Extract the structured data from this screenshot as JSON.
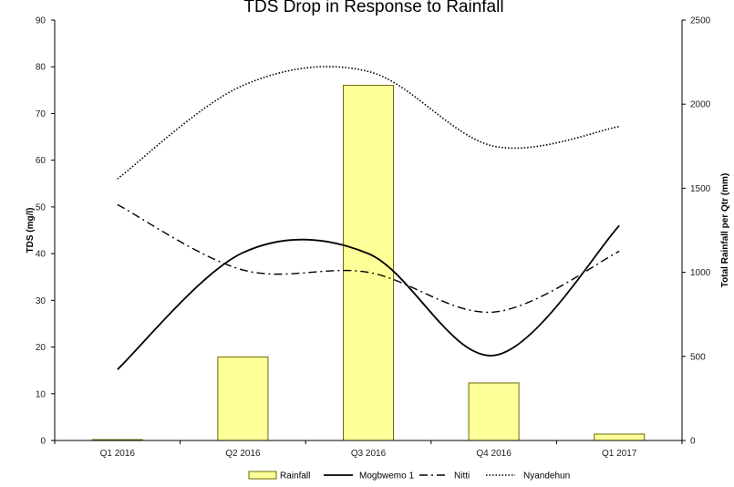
{
  "chart_data": {
    "type": "bar+line",
    "title": "TDS Drop in Response to Rainfall",
    "categories": [
      "Q1 2016",
      "Q2 2016",
      "Q3 2016",
      "Q4 2016",
      "Q1 2017"
    ],
    "ylabel": "TDS (mg/l)",
    "y2label": "Total Rainfall per Qtr (mm)",
    "ylim": [
      0,
      90
    ],
    "yticks": [
      "0",
      "10",
      "20",
      "30",
      "40",
      "50",
      "60",
      "70",
      "80",
      "90"
    ],
    "y2lim": [
      0,
      2500
    ],
    "y2ticks": [
      "0",
      "500",
      "1000",
      "1500",
      "2000",
      "2500"
    ],
    "grid": false,
    "legend_position": "bottom",
    "series": [
      {
        "name": "Rainfall",
        "type": "bar",
        "axis": "right",
        "color": "#ffff99",
        "edge": "#6b6b00",
        "values": [
          5,
          497,
          2112,
          342,
          38
        ]
      },
      {
        "name": "Mogbwemo 1",
        "type": "line",
        "style": "solid",
        "axis": "left",
        "color": "#000000",
        "values": [
          15.2,
          40.2,
          40.0,
          18.2,
          46.0
        ]
      },
      {
        "name": "Nitti",
        "type": "line",
        "style": "dashdot",
        "axis": "left",
        "color": "#000000",
        "values": [
          50.5,
          36.5,
          36.0,
          27.5,
          40.5
        ]
      },
      {
        "name": "Nyandehun",
        "type": "line",
        "style": "dotted",
        "axis": "left",
        "color": "#000000",
        "values": [
          56.0,
          76.0,
          79.0,
          63.0,
          67.2
        ]
      }
    ]
  }
}
